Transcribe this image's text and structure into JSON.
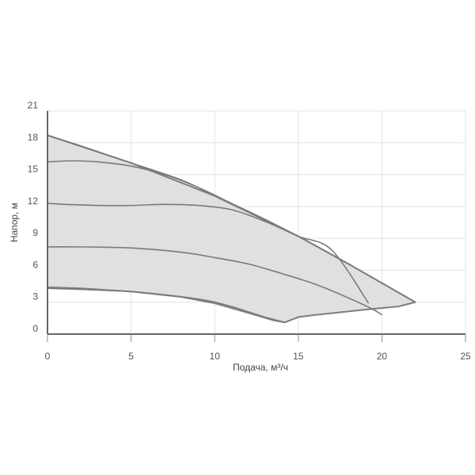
{
  "chart_data": {
    "type": "line",
    "xlabel": "Подача, м³/ч",
    "ylabel": "Напор, м",
    "xlim": [
      0,
      25
    ],
    "ylim": [
      0,
      21
    ],
    "xticks": [
      0,
      5,
      10,
      15,
      20,
      25
    ],
    "yticks": [
      0,
      3,
      6,
      9,
      12,
      15,
      18,
      21
    ],
    "grid": true,
    "colors": {
      "curve": "#7a7a7a",
      "envelope_fill": "#e0e0e0",
      "envelope_stroke": "#7d7d7d",
      "grid": "#e2e2e2",
      "axis": "#666666"
    },
    "envelope": {
      "x": [
        0,
        5,
        10,
        15,
        18,
        22,
        21,
        19,
        16,
        15,
        14.2,
        13.5,
        12,
        10,
        8,
        5,
        2,
        0
      ],
      "y": [
        18.7,
        16.1,
        13.0,
        9.2,
        6.6,
        3.0,
        2.6,
        2.3,
        1.8,
        1.6,
        1.1,
        1.3,
        2.0,
        2.9,
        3.5,
        4.0,
        4.3,
        4.4
      ]
    },
    "series": [
      {
        "x": [
          0,
          2,
          5,
          8,
          10,
          12,
          15,
          18,
          22
        ],
        "y": [
          18.7,
          17.7,
          16.1,
          14.5,
          13.0,
          11.5,
          9.2,
          6.6,
          3.0
        ]
      },
      {
        "x": [
          0,
          1.5,
          3,
          5,
          7,
          9,
          11,
          13,
          15
        ],
        "y": [
          16.2,
          16.3,
          16.2,
          15.8,
          15.0,
          13.8,
          12.3,
          10.8,
          9.2
        ]
      },
      {
        "x": [
          0,
          1,
          2,
          3,
          5,
          7,
          9,
          11,
          13,
          15,
          17,
          19.2
        ],
        "y": [
          12.3,
          12.2,
          12.15,
          12.1,
          12.1,
          12.2,
          12.1,
          11.7,
          10.6,
          9.2,
          7.9,
          2.9
        ]
      },
      {
        "x": [
          0,
          2,
          5,
          8,
          10,
          12,
          14,
          16,
          18,
          19.5,
          20
        ],
        "y": [
          8.2,
          8.2,
          8.1,
          7.7,
          7.2,
          6.6,
          5.7,
          4.7,
          3.4,
          2.3,
          1.8
        ]
      },
      {
        "x": [
          0,
          2,
          5,
          7,
          9,
          10,
          11,
          12,
          13,
          14.2
        ],
        "y": [
          4.3,
          4.2,
          4.0,
          3.7,
          3.3,
          3.0,
          2.6,
          2.1,
          1.6,
          1.1
        ]
      }
    ]
  }
}
